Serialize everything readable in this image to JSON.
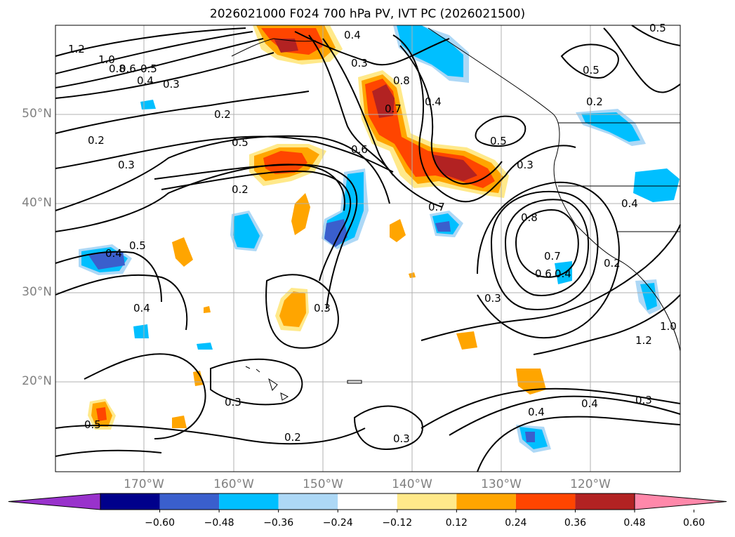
{
  "title": "2026021000 F024 700 hPa PV, IVT PC (2026021500)",
  "map": {
    "lat_labels": [
      "50°N",
      "40°N",
      "30°N",
      "20°N"
    ],
    "lon_labels": [
      "170°W",
      "160°W",
      "150°W",
      "140°W",
      "130°W",
      "120°W"
    ],
    "contour_labels": [
      "1.2",
      "1.0",
      "0.8",
      "0.6",
      "0.5",
      "0.4",
      "0.3",
      "0.2",
      "0.2",
      "0.3",
      "0.5",
      "0.6",
      "0.7",
      "0.8",
      "0.4",
      "0.5",
      "0.3",
      "0.7",
      "0.4",
      "0.5",
      "0.8",
      "0.7",
      "0.6",
      "0.4",
      "0.3",
      "0.4",
      "0.3",
      "0.2",
      "0.3",
      "0.3",
      "0.2",
      "0.3",
      "0.4",
      "0.4",
      "0.5",
      "1.2",
      "1.0",
      "0.4",
      "0.3",
      "0.5",
      "0.2"
    ]
  },
  "colorbar": {
    "ticks": [
      "−0.60",
      "−0.48",
      "−0.36",
      "−0.24",
      "−0.12",
      "0.12",
      "0.24",
      "0.36",
      "0.48",
      "0.60"
    ],
    "colors": [
      "#9932cc",
      "#00008b",
      "#3a5fcd",
      "#00bfff",
      "#add8f6",
      "#ffffff",
      "#ffe98a",
      "#ffa500",
      "#ff4500",
      "#b22222",
      "#ff88aa"
    ]
  }
}
